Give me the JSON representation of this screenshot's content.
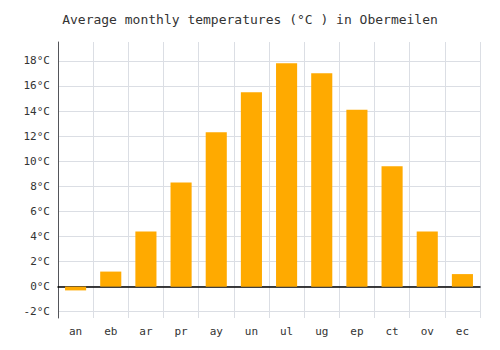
{
  "chart_data": {
    "type": "bar",
    "title": "Average monthly temperatures (°C ) in Obermeilen",
    "categories": [
      "an",
      "eb",
      "ar",
      "pr",
      "ay",
      "un",
      "ul",
      "ug",
      "ep",
      "ct",
      "ov",
      "ec"
    ],
    "values": [
      -0.3,
      1.2,
      4.4,
      8.3,
      12.3,
      15.5,
      17.8,
      17.0,
      14.1,
      9.6,
      4.4,
      1.0
    ],
    "color": "#FFAA00",
    "ylim": [
      -2.5,
      19.5
    ],
    "yticks": [
      {
        "value": -2,
        "label": "-2°C"
      },
      {
        "value": 0,
        "label": "0°C"
      },
      {
        "value": 2,
        "label": "2°C"
      },
      {
        "value": 4,
        "label": "4°C"
      },
      {
        "value": 6,
        "label": "6°C"
      },
      {
        "value": 8,
        "label": "8°C"
      },
      {
        "value": 10,
        "label": "10°C"
      },
      {
        "value": 12,
        "label": "12°C"
      },
      {
        "value": 14,
        "label": "14°C"
      },
      {
        "value": 16,
        "label": "16°C"
      },
      {
        "value": 18,
        "label": "18°C"
      }
    ],
    "grid": true
  }
}
